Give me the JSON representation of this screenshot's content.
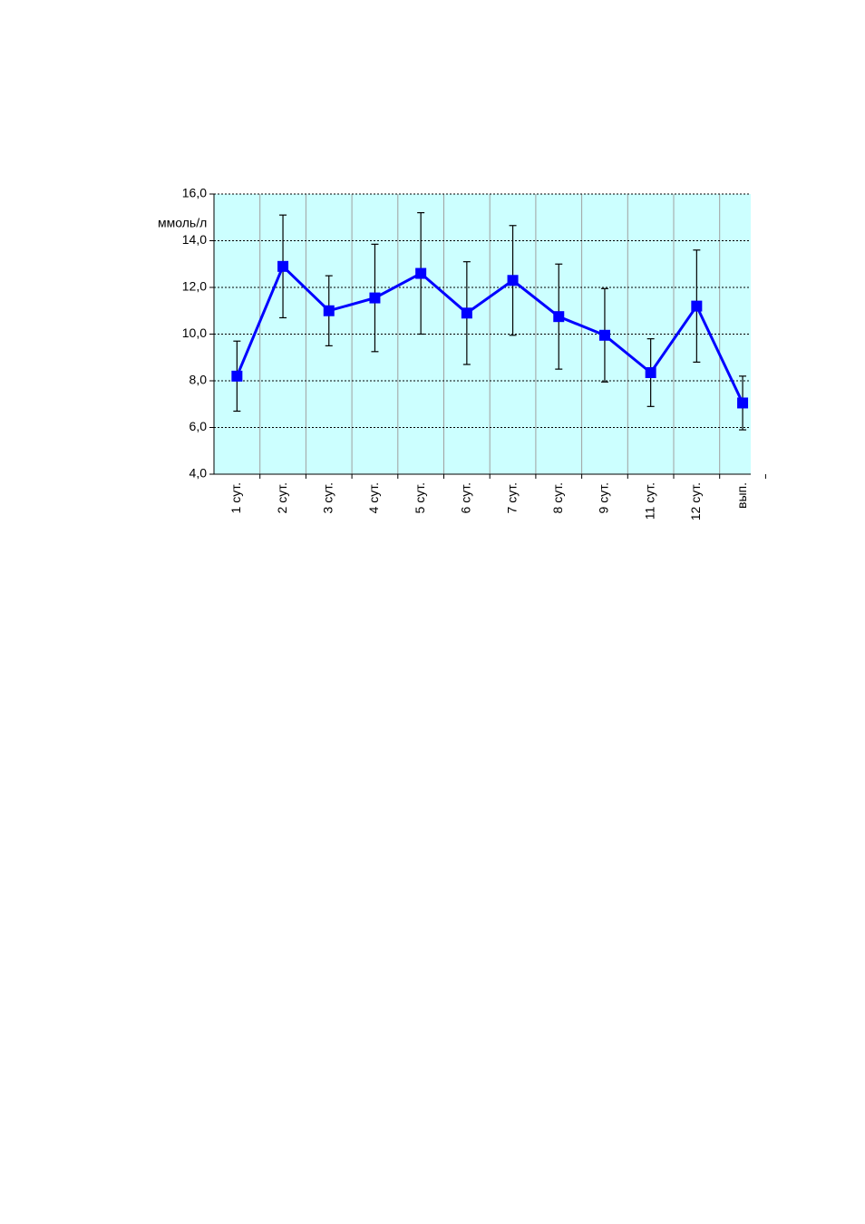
{
  "chart_data": {
    "type": "line",
    "y_label": "ммоль/л",
    "categories": [
      "1 сут.",
      "2 сут.",
      "3 сут.",
      "4 сут.",
      "5 сут.",
      "6 сут.",
      "7 сут.",
      "8 сут.",
      "9 сут.",
      "11 сут.",
      "12 сут.",
      "вып."
    ],
    "series": [
      {
        "name": "ммоль/л",
        "color": "#0000ff",
        "values": [
          8.2,
          12.9,
          11.0,
          11.55,
          12.6,
          10.9,
          12.3,
          10.75,
          9.95,
          8.35,
          11.2,
          7.05
        ],
        "errors": [
          1.5,
          2.2,
          1.5,
          2.3,
          2.6,
          2.2,
          2.35,
          2.25,
          2.0,
          1.45,
          2.4,
          1.15
        ]
      }
    ],
    "ylim": [
      4,
      16
    ],
    "yticks": [
      {
        "value": 4,
        "label": "4,0"
      },
      {
        "value": 6,
        "label": "6,0"
      },
      {
        "value": 8,
        "label": "8,0"
      },
      {
        "value": 10,
        "label": "10,0"
      },
      {
        "value": 12,
        "label": "12,0"
      },
      {
        "value": 14,
        "label": "14,0"
      },
      {
        "value": 16,
        "label": "16,0"
      }
    ],
    "grid": true,
    "background": "#ccffff"
  }
}
